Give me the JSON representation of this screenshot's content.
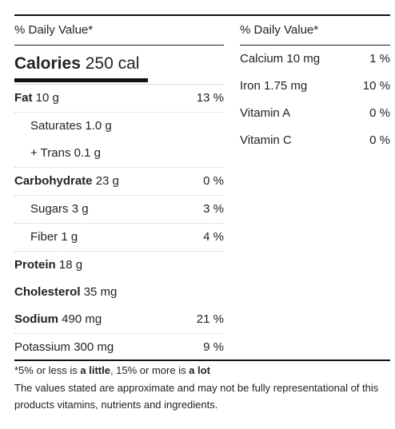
{
  "left": {
    "header": "% Daily Value*",
    "calories_label": "Calories",
    "calories_value": "250 cal",
    "rows": [
      {
        "label": "Fat",
        "amount": "10 g",
        "pct": "13 %"
      },
      {
        "label": "Saturates",
        "amount": "1.0 g",
        "pct": ""
      },
      {
        "label": "+ Trans",
        "amount": "0.1 g",
        "pct": ""
      },
      {
        "label": "Carbohydrate",
        "amount": "23 g",
        "pct": "0 %"
      },
      {
        "label": "Sugars",
        "amount": "3 g",
        "pct": "3 %"
      },
      {
        "label": "Fiber",
        "amount": "1 g",
        "pct": "4 %"
      },
      {
        "label": "Protein",
        "amount": "18 g",
        "pct": ""
      },
      {
        "label": "Cholesterol",
        "amount": "35 mg",
        "pct": ""
      },
      {
        "label": "Sodium",
        "amount": "490 mg",
        "pct": "21 %"
      },
      {
        "label": "Potassium",
        "amount": "300 mg",
        "pct": "9 %"
      }
    ]
  },
  "right": {
    "header": "% Daily Value*",
    "rows": [
      {
        "label": "Calcium",
        "amount": "10 mg",
        "pct": "1 %"
      },
      {
        "label": "Iron",
        "amount": "1.75 mg",
        "pct": "10 %"
      },
      {
        "label": "Vitamin A",
        "amount": "",
        "pct": "0 %"
      },
      {
        "label": "Vitamin C",
        "amount": "",
        "pct": "0 %"
      }
    ]
  },
  "footer": {
    "note_prefix": "*5% or less is ",
    "note_little": "a little",
    "note_middle": ", 15% or more is ",
    "note_lot": "a lot",
    "disclaimer": "The values stated are approximate and may not be fully representational of this products vitamins, nutrients and ingredients."
  }
}
